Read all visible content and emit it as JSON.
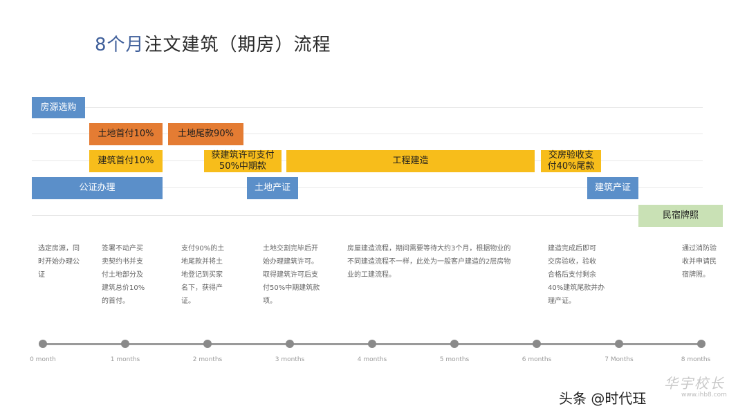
{
  "title": {
    "accent": "8个月",
    "main": "注文建筑（期房）流程"
  },
  "bars": [
    {
      "name": "bar-listing-purchase",
      "label": "房源选购",
      "tone": "blue"
    },
    {
      "name": "bar-land-down-payment",
      "label": "土地首付10%",
      "tone": "orange"
    },
    {
      "name": "bar-land-final-payment",
      "label": "土地尾款90%",
      "tone": "orange"
    },
    {
      "name": "bar-build-down-payment",
      "label": "建筑首付10%",
      "tone": "yellow"
    },
    {
      "name": "bar-permit-mid-payment",
      "label": "获建筑许可支付\n50%中期款",
      "tone": "yellow"
    },
    {
      "name": "bar-construction",
      "label": "工程建造",
      "tone": "yellow"
    },
    {
      "name": "bar-handover-final-payment",
      "label": "交房验收支\n付40%尾款",
      "tone": "yellow"
    },
    {
      "name": "bar-notary",
      "label": "公证办理",
      "tone": "blue"
    },
    {
      "name": "bar-land-title",
      "label": "土地产证",
      "tone": "blue"
    },
    {
      "name": "bar-building-title",
      "label": "建筑产证",
      "tone": "blue"
    },
    {
      "name": "bar-guesthouse-license",
      "label": "民宿牌照",
      "tone": "green"
    }
  ],
  "descriptions": [
    "选定房源，同\n时开始办理公\n证",
    "签署不动产买\n卖契约书并支\n付土地部分及\n建筑总价10%\n的首付。",
    "支付90%的土\n地尾款并将土\n地登记到买家\n名下，获得产\n证。",
    "土地交割完毕后开\n始办理建筑许可。\n取得建筑许可后支\n付50%中期建筑款\n项。",
    "房屋建造流程，期间需要等待大约3个月，根据物业的\n不同建造流程不一样，此处为一般客户建造的2层房物\n业的工建流程。",
    "建造完成后即可\n交房验收，验收\n合格后支付剩余\n40%建筑尾款并办\n理产证。",
    "通过消防验\n收并申请民\n宿牌照。"
  ],
  "timeline": {
    "labels": [
      "0 month",
      "1 months",
      "2 months",
      "3 months",
      "4 months",
      "5 months",
      "6 months",
      "7 Months",
      "8 months"
    ]
  },
  "footer": {
    "credit": "头条 @时代珏",
    "watermark": "华宇校长",
    "watermark_url": "www.ihb8.com"
  }
}
